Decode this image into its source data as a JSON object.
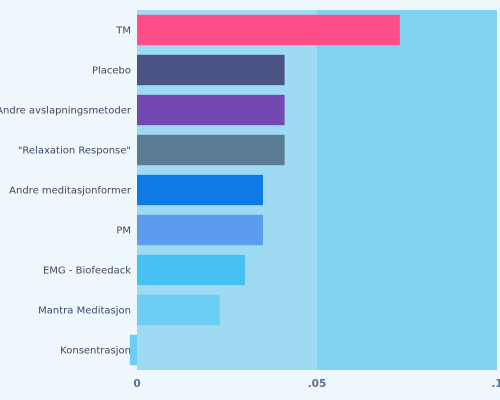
{
  "chart_data": {
    "type": "bar",
    "orientation": "horizontal",
    "categories": [
      "TM",
      "Placebo",
      "Andre avslapningsmetoder",
      "\"Relaxation Response\"",
      "Andre meditasjonformer",
      "PM",
      "EMG - Biofeedack",
      "Mantra Meditasjon",
      "Konsentrasjon"
    ],
    "values": [
      0.073,
      0.041,
      0.041,
      0.041,
      0.035,
      0.035,
      0.03,
      0.023,
      -0.002
    ],
    "bar_colors": [
      "#ff4d8a",
      "#4b5384",
      "#7348b2",
      "#5a7d95",
      "#0f7ae6",
      "#5b9ced",
      "#45c2f2",
      "#6ecdf2",
      "#6ecdf2"
    ],
    "xlim": [
      0,
      0.1
    ],
    "x_ticks": [
      0,
      0.05,
      0.1
    ],
    "x_tick_labels": [
      "0",
      ".05",
      ".1"
    ],
    "band_colors": [
      "#9edbf3",
      "#80d1f2"
    ],
    "grid": false,
    "legend": "none"
  }
}
